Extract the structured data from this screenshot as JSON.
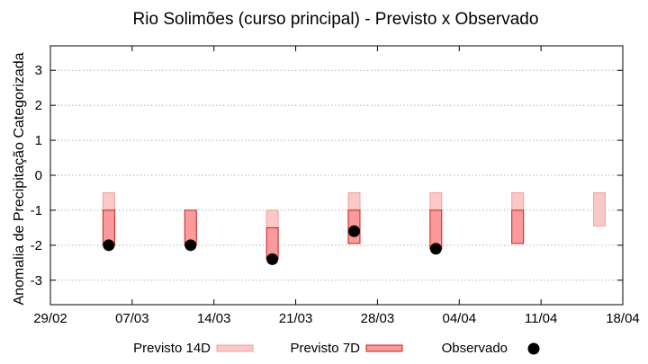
{
  "chart_data": {
    "type": "bar",
    "title": "Rio Solimões (curso principal) - Previsto x Observado",
    "ylabel": "Anomalia de Precipitação Categorizada",
    "xlabel": "",
    "ylim": [
      -3.7,
      3.7
    ],
    "y_ticks": [
      3,
      2,
      1,
      0,
      -1,
      -2,
      -3
    ],
    "y_tick_labels": [
      "3",
      "2",
      "1",
      "0",
      "-1",
      "-2",
      "-3"
    ],
    "x_range": [
      "2024-02-29",
      "2024-04-18"
    ],
    "x_ticks": [
      "2024-02-29",
      "2024-03-07",
      "2024-03-14",
      "2024-03-21",
      "2024-03-28",
      "2024-04-04",
      "2024-04-11",
      "2024-04-18"
    ],
    "x_tick_labels": [
      "29/02",
      "07/03",
      "14/03",
      "21/03",
      "28/03",
      "04/04",
      "11/04",
      "18/04"
    ],
    "grid": "horizontal dotted",
    "legend_position": "bottom",
    "colors": {
      "previsto_14d_fill": "#fbc8c8",
      "previsto_14d_stroke": "#f0a0a0",
      "previsto_7d_fill": "#fa9a9a",
      "previsto_7d_stroke": "#c42020",
      "observado": "#000000",
      "grid": "#b0b0b0",
      "axis": "#000000"
    },
    "series": [
      {
        "name": "Previsto 14D",
        "kind": "floating-bar",
        "points": [
          {
            "x": "2024-03-05",
            "low": -1.0,
            "high": -0.5
          },
          {
            "x": "2024-03-19",
            "low": -1.5,
            "high": -1.0
          },
          {
            "x": "2024-03-26",
            "low": -1.0,
            "high": -0.5
          },
          {
            "x": "2024-04-02",
            "low": -1.0,
            "high": -0.5
          },
          {
            "x": "2024-04-09",
            "low": -1.0,
            "high": -0.5
          },
          {
            "x": "2024-04-16",
            "low": -1.45,
            "high": -0.5
          }
        ]
      },
      {
        "name": "Previsto 7D",
        "kind": "floating-bar",
        "points": [
          {
            "x": "2024-03-05",
            "low": -2.0,
            "high": -1.0
          },
          {
            "x": "2024-03-12",
            "low": -2.0,
            "high": -1.0
          },
          {
            "x": "2024-03-19",
            "low": -2.4,
            "high": -1.5
          },
          {
            "x": "2024-03-26",
            "low": -1.95,
            "high": -1.0
          },
          {
            "x": "2024-04-02",
            "low": -2.1,
            "high": -1.0
          },
          {
            "x": "2024-04-09",
            "low": -1.95,
            "high": -1.0
          }
        ]
      },
      {
        "name": "Observado",
        "kind": "point",
        "points": [
          {
            "x": "2024-03-05",
            "y": -2.0
          },
          {
            "x": "2024-03-12",
            "y": -2.0
          },
          {
            "x": "2024-03-19",
            "y": -2.4
          },
          {
            "x": "2024-03-26",
            "y": -1.6
          },
          {
            "x": "2024-04-02",
            "y": -2.1
          }
        ]
      }
    ]
  }
}
